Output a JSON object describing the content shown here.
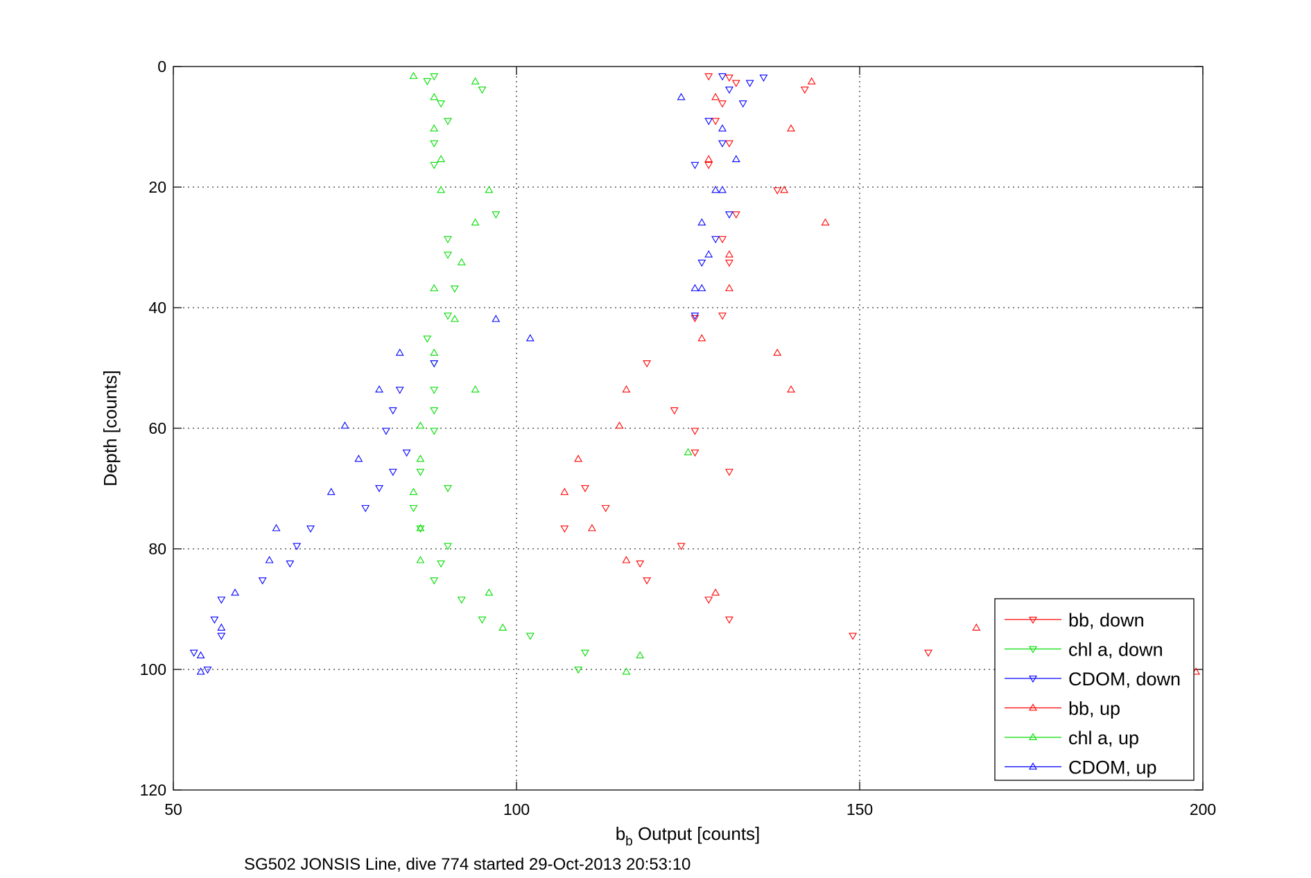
{
  "chart_data": {
    "type": "scatter",
    "title": "",
    "xlabel_main": "b",
    "xlabel_sub": "b",
    "xlabel_rest": " Output [counts]",
    "ylabel": "Depth [counts]",
    "caption": "SG502 JONSIS Line, dive 774 started 29-Oct-2013 20:53:10",
    "xlim": [
      50,
      200
    ],
    "ylim": [
      0,
      120
    ],
    "y_reversed": true,
    "grid": true,
    "legend_position": "bottom-right",
    "xticks": [
      50,
      100,
      150,
      200
    ],
    "yticks": [
      0,
      20,
      40,
      60,
      80,
      100,
      120
    ],
    "xtick_labels": [
      "50",
      "100",
      "150",
      "200"
    ],
    "ytick_labels": [
      "0",
      "20",
      "40",
      "60",
      "80",
      "100",
      "120"
    ],
    "series": [
      {
        "name": "bb, down",
        "color": "#ff0000",
        "marker": "triangle-down",
        "points": [
          [
            128,
            1.6
          ],
          [
            131,
            1.8
          ],
          [
            132,
            2.7
          ],
          [
            142,
            3.8
          ],
          [
            130,
            6.1
          ],
          [
            129,
            9.0
          ],
          [
            131,
            12.7
          ],
          [
            128,
            16.3
          ],
          [
            138,
            20.5
          ],
          [
            132,
            24.5
          ],
          [
            130,
            28.6
          ],
          [
            131,
            32.5
          ],
          [
            130,
            41.3
          ],
          [
            126,
            41.7
          ],
          [
            119,
            49.2
          ],
          [
            123,
            57.0
          ],
          [
            126,
            60.4
          ],
          [
            126,
            64.0
          ],
          [
            110,
            69.9
          ],
          [
            113,
            73.2
          ],
          [
            107,
            76.6
          ],
          [
            124,
            79.5
          ],
          [
            118,
            82.4
          ],
          [
            119,
            85.2
          ],
          [
            128,
            88.4
          ],
          [
            131,
            91.7
          ],
          [
            149,
            94.4
          ],
          [
            160,
            97.2
          ],
          [
            131,
            67.2
          ]
        ]
      },
      {
        "name": "chl a, down",
        "color": "#00dd00",
        "marker": "triangle-down",
        "points": [
          [
            88,
            1.6
          ],
          [
            87,
            2.4
          ],
          [
            95,
            3.8
          ],
          [
            89,
            6.1
          ],
          [
            90,
            9.0
          ],
          [
            88,
            12.7
          ],
          [
            88,
            16.3
          ],
          [
            97,
            24.5
          ],
          [
            90,
            28.6
          ],
          [
            90,
            31.2
          ],
          [
            91,
            36.8
          ],
          [
            90,
            41.3
          ],
          [
            87,
            45.1
          ],
          [
            88,
            49.2
          ],
          [
            88,
            53.6
          ],
          [
            88,
            57.0
          ],
          [
            88,
            60.4
          ],
          [
            86,
            67.2
          ],
          [
            90,
            69.9
          ],
          [
            85,
            73.2
          ],
          [
            86,
            76.6
          ],
          [
            90,
            79.5
          ],
          [
            89,
            82.4
          ],
          [
            88,
            85.2
          ],
          [
            92,
            88.4
          ],
          [
            95,
            91.7
          ],
          [
            102,
            94.4
          ],
          [
            110,
            97.2
          ],
          [
            109,
            100.0
          ]
        ]
      },
      {
        "name": "CDOM, down",
        "color": "#0000ff",
        "marker": "triangle-down",
        "points": [
          [
            130,
            1.6
          ],
          [
            136,
            1.8
          ],
          [
            134,
            2.7
          ],
          [
            131,
            3.8
          ],
          [
            133,
            6.1
          ],
          [
            128,
            9.0
          ],
          [
            130,
            12.7
          ],
          [
            126,
            16.3
          ],
          [
            131,
            24.5
          ],
          [
            129,
            28.6
          ],
          [
            127,
            32.5
          ],
          [
            126,
            41.3
          ],
          [
            88,
            49.2
          ],
          [
            83,
            53.6
          ],
          [
            82,
            57.0
          ],
          [
            81,
            60.4
          ],
          [
            84,
            64.0
          ],
          [
            82,
            67.2
          ],
          [
            80,
            69.9
          ],
          [
            78,
            73.2
          ],
          [
            70,
            76.6
          ],
          [
            68,
            79.5
          ],
          [
            67,
            82.4
          ],
          [
            63,
            85.2
          ],
          [
            57,
            88.4
          ],
          [
            56,
            91.7
          ],
          [
            57,
            94.4
          ],
          [
            53,
            97.2
          ],
          [
            55,
            100.0
          ]
        ]
      },
      {
        "name": "bb, up",
        "color": "#ff0000",
        "marker": "triangle-up",
        "points": [
          [
            143,
            2.5
          ],
          [
            129,
            5.1
          ],
          [
            140,
            10.3
          ],
          [
            128,
            15.4
          ],
          [
            139,
            20.5
          ],
          [
            145,
            25.9
          ],
          [
            131,
            31.2
          ],
          [
            131,
            36.8
          ],
          [
            127,
            45.1
          ],
          [
            138,
            47.5
          ],
          [
            116,
            53.6
          ],
          [
            140,
            53.6
          ],
          [
            115,
            59.6
          ],
          [
            109,
            65.1
          ],
          [
            107,
            70.6
          ],
          [
            111,
            76.6
          ],
          [
            116,
            81.9
          ],
          [
            129,
            87.3
          ],
          [
            167,
            93.1
          ],
          [
            199,
            100.4
          ]
        ]
      },
      {
        "name": "chl a, up",
        "color": "#00dd00",
        "marker": "triangle-up",
        "points": [
          [
            85,
            1.6
          ],
          [
            94,
            2.5
          ],
          [
            88,
            5.1
          ],
          [
            88,
            10.3
          ],
          [
            89,
            15.4
          ],
          [
            96,
            20.5
          ],
          [
            89,
            20.5
          ],
          [
            94,
            25.9
          ],
          [
            92,
            32.5
          ],
          [
            88,
            36.8
          ],
          [
            91,
            41.9
          ],
          [
            88,
            47.5
          ],
          [
            94,
            53.6
          ],
          [
            86,
            59.6
          ],
          [
            86,
            65.1
          ],
          [
            85,
            70.6
          ],
          [
            86,
            76.6
          ],
          [
            86,
            81.9
          ],
          [
            96,
            87.3
          ],
          [
            98,
            93.1
          ],
          [
            118,
            97.7
          ],
          [
            116,
            100.4
          ],
          [
            125,
            64.0
          ]
        ]
      },
      {
        "name": "CDOM, up",
        "color": "#0000ff",
        "marker": "triangle-up",
        "points": [
          [
            124,
            5.1
          ],
          [
            130,
            10.3
          ],
          [
            132,
            15.4
          ],
          [
            130,
            20.5
          ],
          [
            129,
            20.5
          ],
          [
            127,
            25.9
          ],
          [
            128,
            31.2
          ],
          [
            127,
            36.8
          ],
          [
            126,
            36.8
          ],
          [
            97,
            41.9
          ],
          [
            102,
            45.1
          ],
          [
            83,
            47.5
          ],
          [
            80,
            53.6
          ],
          [
            75,
            59.6
          ],
          [
            77,
            65.1
          ],
          [
            73,
            70.6
          ],
          [
            65,
            76.6
          ],
          [
            64,
            81.9
          ],
          [
            59,
            87.3
          ],
          [
            57,
            93.1
          ],
          [
            54,
            97.7
          ],
          [
            54,
            100.4
          ]
        ]
      }
    ]
  }
}
